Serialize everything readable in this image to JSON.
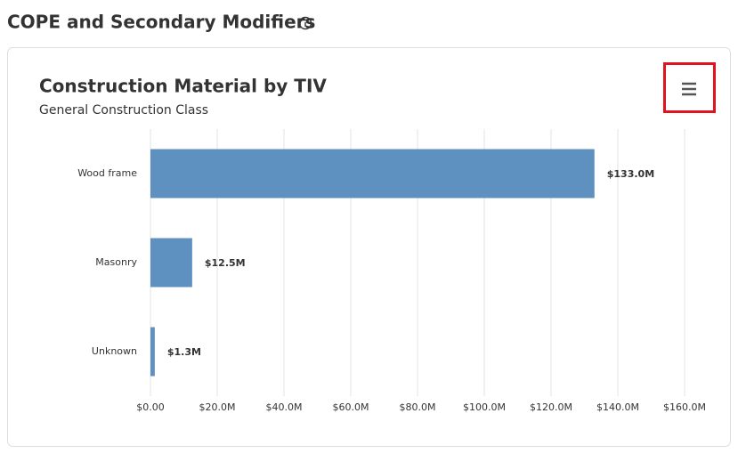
{
  "page": {
    "section_title": "COPE and Secondary Modifiers"
  },
  "chart_data": {
    "type": "hbar",
    "title": "Construction Material by TIV",
    "subtitle": "General Construction Class",
    "categories": [
      "Wood frame",
      "Masonry",
      "Unknown"
    ],
    "values": [
      133000000,
      12500000,
      1300000
    ],
    "value_labels": [
      "$133.0M",
      "$12.5M",
      "$1.3M"
    ],
    "color": "#5f91c0",
    "xlim": [
      0,
      160000000
    ],
    "xticks": [
      {
        "value": 0,
        "label": "$0.00"
      },
      {
        "value": 20000000,
        "label": "$20.0M"
      },
      {
        "value": 40000000,
        "label": "$40.0M"
      },
      {
        "value": 60000000,
        "label": "$60.0M"
      },
      {
        "value": 80000000,
        "label": "$80.0M"
      },
      {
        "value": 100000000,
        "label": "$100.0M"
      },
      {
        "value": 120000000,
        "label": "$120.0M"
      },
      {
        "value": 140000000,
        "label": "$140.0M"
      },
      {
        "value": 160000000,
        "label": "$160.0M"
      }
    ],
    "grid": true
  }
}
